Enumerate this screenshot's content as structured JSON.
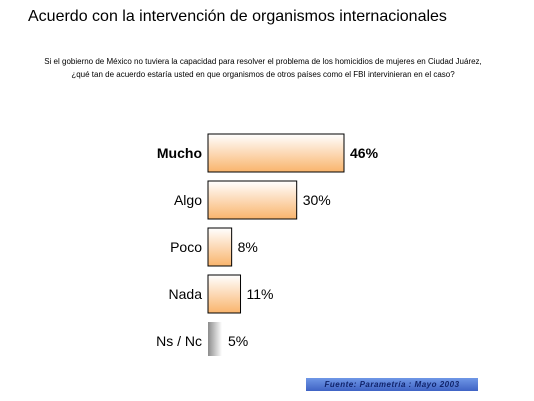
{
  "title": "Acuerdo con la intervención de organismos internacionales",
  "question": "Si el gobierno de México no tuviera la capacidad para resolver el problema de los homicidios de mujeres en Ciudad Juárez, ¿qué tan de acuerdo estaría usted en que organismos de otros países como el FBI intervinieran en el caso?",
  "source": "Fuente: Parametría : Mayo 2003",
  "colors": {
    "bar_top": "#ffffff",
    "bar_bottom": "#f9b46c",
    "nsnc_top": "#ffffff",
    "nsnc_bottom": "#8c8c8c",
    "source_bg": "#4f74d6"
  },
  "chart_data": {
    "type": "bar",
    "orientation": "horizontal",
    "categories": [
      "Mucho",
      "Algo",
      "Poco",
      "Nada",
      "Ns / Nc"
    ],
    "values": [
      46,
      30,
      8,
      11,
      5
    ],
    "value_labels": [
      "46%",
      "30%",
      "8%",
      "11%",
      "5%"
    ],
    "emphasized": [
      "Mucho"
    ],
    "unit": "%"
  }
}
